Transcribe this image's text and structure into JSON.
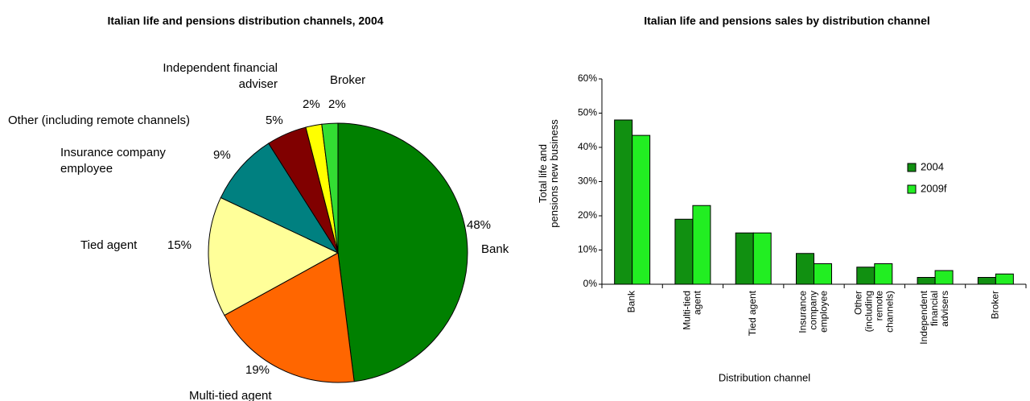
{
  "chart_data": [
    {
      "type": "pie",
      "title": "Italian life and pensions distribution channels, 2004",
      "categories": [
        "Bank",
        "Multi-tied agent",
        "Tied agent",
        "Insurance company employee",
        "Other (including remote channels)",
        "Independent financial adviser",
        "Broker"
      ],
      "values": [
        48,
        19,
        15,
        9,
        5,
        2,
        2
      ],
      "value_labels": [
        "48%",
        "19%",
        "15%",
        "9%",
        "5%",
        "2%",
        "2%"
      ],
      "colors": [
        "#008000",
        "#ff6600",
        "#ffff99",
        "#008080",
        "#800000",
        "#ffff00",
        "#33dd33"
      ]
    },
    {
      "type": "bar",
      "title": "Italian life and pensions sales by distribution channel",
      "y_label": "Total life and pensions new business",
      "x_label": "Distribution channel",
      "categories": [
        "Bank",
        "Multi-tied agent",
        "Tied agent",
        "Insurance company employee",
        "Other (including remote channels)",
        "Independent financial advisers",
        "Broker"
      ],
      "series": [
        {
          "name": "2004",
          "color": "#119011",
          "values": [
            48,
            19,
            15,
            9,
            5,
            2,
            2
          ]
        },
        {
          "name": "2009f",
          "color": "#22ee22",
          "values": [
            43.5,
            23,
            15,
            6,
            6,
            4,
            3
          ]
        }
      ],
      "ylim": [
        0,
        60
      ],
      "yticks": [
        {
          "value": 0,
          "label": "0%"
        },
        {
          "value": 10,
          "label": "10%"
        },
        {
          "value": 20,
          "label": "20%"
        },
        {
          "value": 30,
          "label": "30%"
        },
        {
          "value": 40,
          "label": "40%"
        },
        {
          "value": 50,
          "label": "50%"
        },
        {
          "value": 60,
          "label": "60%"
        }
      ],
      "legend": "right"
    }
  ]
}
